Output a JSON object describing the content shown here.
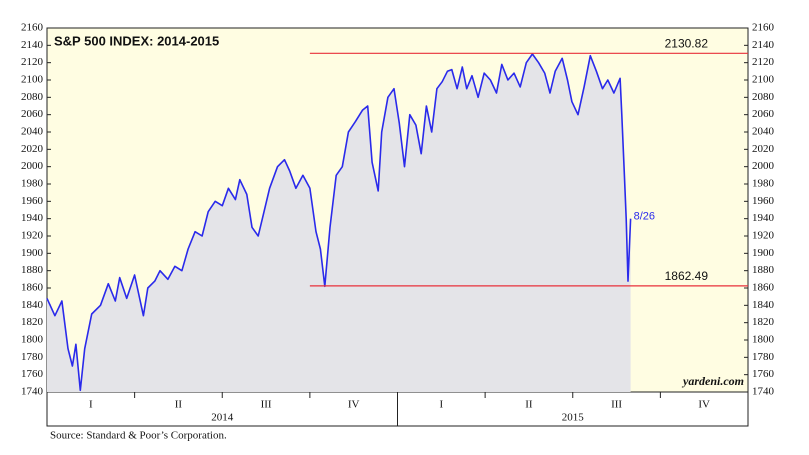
{
  "chart_data": {
    "type": "line",
    "title": "S&P 500 INDEX: 2014-2015",
    "source": "Source: Standard & Poor’s Corporation.",
    "watermark": "yardeni.com",
    "x": [
      0,
      0.09,
      0.17,
      0.24,
      0.29,
      0.33,
      0.38,
      0.43,
      0.51,
      0.61,
      0.7,
      0.78,
      0.83,
      0.91,
      1.0,
      1.1,
      1.15,
      1.23,
      1.29,
      1.38,
      1.46,
      1.54,
      1.61,
      1.69,
      1.77,
      1.84,
      1.92,
      2.0,
      2.07,
      2.15,
      2.2,
      2.28,
      2.34,
      2.41,
      2.47,
      2.54,
      2.63,
      2.71,
      2.77,
      2.84,
      2.92,
      3.0,
      3.07,
      3.12,
      3.17,
      3.23,
      3.3,
      3.37,
      3.44,
      3.52,
      3.6,
      3.66,
      3.71,
      3.78,
      3.82,
      3.89,
      3.96,
      4.02,
      4.08,
      4.14,
      4.21,
      4.27,
      4.33,
      4.39,
      4.45,
      4.51,
      4.57,
      4.62,
      4.68,
      4.74,
      4.79,
      4.85,
      4.92,
      4.99,
      5.06,
      5.13,
      5.19,
      5.26,
      5.33,
      5.4,
      5.47,
      5.54,
      5.61,
      5.68,
      5.74,
      5.8,
      5.88,
      5.94,
      5.99,
      6.06,
      6.13,
      6.2,
      6.27,
      6.34,
      6.4,
      6.47,
      6.54,
      6.56,
      6.59,
      6.61,
      6.63,
      6.66
    ],
    "series": [
      {
        "name": "S&P 500",
        "color": "#2a2aeb",
        "values": [
          1848,
          1828,
          1845,
          1790,
          1770,
          1795,
          1742,
          1790,
          1830,
          1840,
          1865,
          1845,
          1872,
          1848,
          1875,
          1828,
          1860,
          1868,
          1880,
          1870,
          1885,
          1880,
          1905,
          1925,
          1920,
          1948,
          1960,
          1955,
          1975,
          1962,
          1985,
          1968,
          1930,
          1920,
          1945,
          1975,
          2000,
          2008,
          1995,
          1975,
          1990,
          1975,
          1925,
          1905,
          1862,
          1930,
          1990,
          2000,
          2040,
          2052,
          2065,
          2070,
          2005,
          1972,
          2040,
          2080,
          2090,
          2050,
          2000,
          2060,
          2048,
          2015,
          2070,
          2040,
          2090,
          2098,
          2110,
          2112,
          2090,
          2115,
          2090,
          2105,
          2080,
          2108,
          2100,
          2085,
          2118,
          2100,
          2108,
          2092,
          2120,
          2130,
          2120,
          2108,
          2085,
          2110,
          2125,
          2100,
          2075,
          2060,
          2092,
          2128,
          2110,
          2090,
          2100,
          2085,
          2102,
          2060,
          1990,
          1940,
          1868,
          1940
        ]
      }
    ],
    "xlim": [
      0,
      8
    ],
    "quarter_labels": [
      {
        "value": 0.5,
        "label": "I"
      },
      {
        "value": 1.5,
        "label": "II"
      },
      {
        "value": 2.5,
        "label": "III"
      },
      {
        "value": 3.5,
        "label": "IV"
      },
      {
        "value": 4.5,
        "label": "I"
      },
      {
        "value": 5.5,
        "label": "II"
      },
      {
        "value": 6.5,
        "label": "III"
      },
      {
        "value": 7.5,
        "label": "IV"
      }
    ],
    "year_labels": [
      {
        "value": 2,
        "label": "2014"
      },
      {
        "value": 6,
        "label": "2015"
      }
    ],
    "ylim": [
      1740,
      2160
    ],
    "yticks": [
      1740,
      1760,
      1780,
      1800,
      1820,
      1840,
      1860,
      1880,
      1900,
      1920,
      1940,
      1960,
      1980,
      2000,
      2020,
      2040,
      2060,
      2080,
      2100,
      2120,
      2140,
      2160
    ],
    "reference_lines": [
      {
        "value": 2130.82,
        "x_start": 3.0,
        "color": "#e8303a"
      },
      {
        "value": 1862.49,
        "x_start": 3.0,
        "color": "#e8303a"
      }
    ],
    "annotations": [
      {
        "text": "8/26"
      }
    ],
    "grid": false
  }
}
